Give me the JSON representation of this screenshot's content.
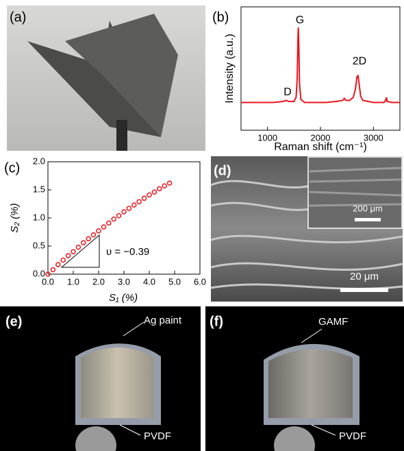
{
  "panels": {
    "a": "(a)",
    "b": "(b)",
    "c": "(c)",
    "d": "(d)",
    "e": "(e)",
    "f": "(f)",
    "d_inset_scale": "200 μm",
    "d_scale": "20 μm",
    "e_top": "Ag paint",
    "e_bottom": "PVDF",
    "f_top": "GAMF",
    "f_bottom": "PVDF"
  },
  "chart_data": [
    {
      "type": "line",
      "xlabel": "Raman shift (cm⁻¹)",
      "ylabel": "Intensity (a.u.)",
      "annotations": [
        "D",
        "G",
        "2D"
      ],
      "x": [
        500,
        700,
        900,
        1100,
        1300,
        1350,
        1400,
        1500,
        1540,
        1560,
        1575,
        1582,
        1590,
        1605,
        1630,
        1700,
        1900,
        2100,
        2300,
        2420,
        2450,
        2480,
        2550,
        2620,
        2660,
        2690,
        2710,
        2730,
        2760,
        2800,
        2900,
        3000,
        3100,
        3200,
        3230,
        3245,
        3260,
        3350,
        3500
      ],
      "series": [
        {
          "color": "#e8141c",
          "values": [
            0.27,
            0.27,
            0.27,
            0.27,
            0.28,
            0.29,
            0.28,
            0.28,
            0.32,
            0.5,
            0.9,
            1.0,
            0.85,
            0.45,
            0.3,
            0.27,
            0.27,
            0.27,
            0.28,
            0.29,
            0.31,
            0.29,
            0.29,
            0.32,
            0.4,
            0.52,
            0.53,
            0.45,
            0.33,
            0.29,
            0.28,
            0.27,
            0.27,
            0.27,
            0.29,
            0.32,
            0.28,
            0.27,
            0.27
          ]
        }
      ],
      "xlim": [
        500,
        3500
      ],
      "xticks": [
        1000,
        2000,
        3000
      ],
      "ylim": [
        0,
        1.2
      ]
    },
    {
      "type": "scatter",
      "xlabel": "S₁ (%)",
      "ylabel": "S₂ (%)",
      "annotations": [
        "υ = −0.39"
      ],
      "x": [
        0,
        0.2,
        0.4,
        0.6,
        0.8,
        1.0,
        1.2,
        1.4,
        1.6,
        1.8,
        2.0,
        2.2,
        2.4,
        2.6,
        2.8,
        3.0,
        3.2,
        3.4,
        3.6,
        3.8,
        4.0,
        4.2,
        4.4,
        4.6,
        4.8
      ],
      "series": [
        {
          "color": "#e8141c",
          "values": [
            0,
            0.08,
            0.17,
            0.25,
            0.33,
            0.4,
            0.48,
            0.56,
            0.63,
            0.7,
            0.77,
            0.84,
            0.91,
            0.98,
            1.04,
            1.11,
            1.17,
            1.23,
            1.29,
            1.35,
            1.41,
            1.46,
            1.52,
            1.57,
            1.62
          ]
        }
      ],
      "xlim": [
        0,
        6
      ],
      "xticks": [
        {
          "value": 0,
          "label": "0.0"
        },
        {
          "value": 1,
          "label": "1.0"
        },
        {
          "value": 2,
          "label": "2.0"
        },
        {
          "value": 3,
          "label": "3.0"
        },
        {
          "value": 4,
          "label": "4.0"
        },
        {
          "value": 5,
          "label": "5.0"
        },
        {
          "value": 6,
          "label": "6.0"
        }
      ],
      "ylim": [
        0,
        2
      ],
      "yticks": [
        {
          "value": 0,
          "label": "0.0"
        },
        0.5,
        {
          "value": 1,
          "label": "1.0"
        },
        1.5,
        {
          "value": 2,
          "label": "2.0"
        }
      ]
    }
  ]
}
